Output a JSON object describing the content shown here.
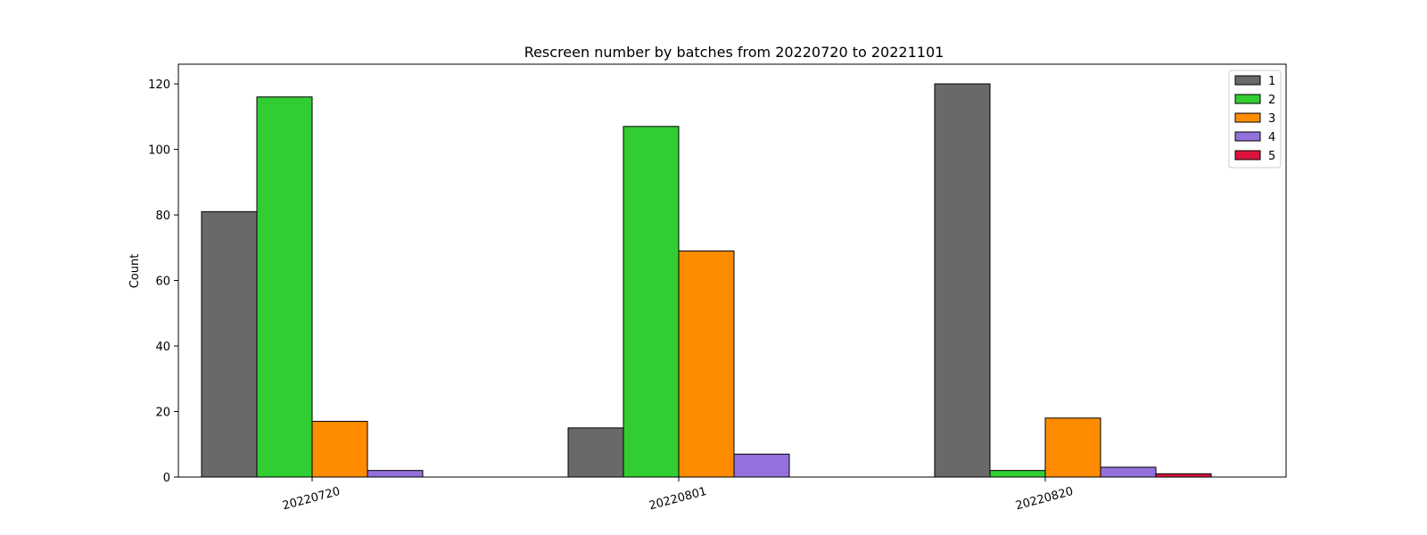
{
  "chart_data": {
    "type": "bar",
    "title": "Rescreen number  by batches from 20220720 to 20221101",
    "xlabel": "",
    "ylabel": "Count",
    "categories": [
      "20220720",
      "20220801",
      "20220820"
    ],
    "ylim": [
      0,
      126
    ],
    "yticks": [
      0,
      20,
      40,
      60,
      80,
      100,
      120
    ],
    "legend_position": "top-right",
    "grid": false,
    "series": [
      {
        "name": "1",
        "color": "#696969",
        "values": [
          81,
          15,
          120
        ]
      },
      {
        "name": "2",
        "color": "#32cd32",
        "values": [
          116,
          107,
          2
        ]
      },
      {
        "name": "3",
        "color": "#ff8c00",
        "values": [
          17,
          69,
          18
        ]
      },
      {
        "name": "4",
        "color": "#9370db",
        "values": [
          2,
          7,
          3
        ]
      },
      {
        "name": "5",
        "color": "#dc143c",
        "values": [
          0,
          0,
          1
        ]
      }
    ]
  }
}
